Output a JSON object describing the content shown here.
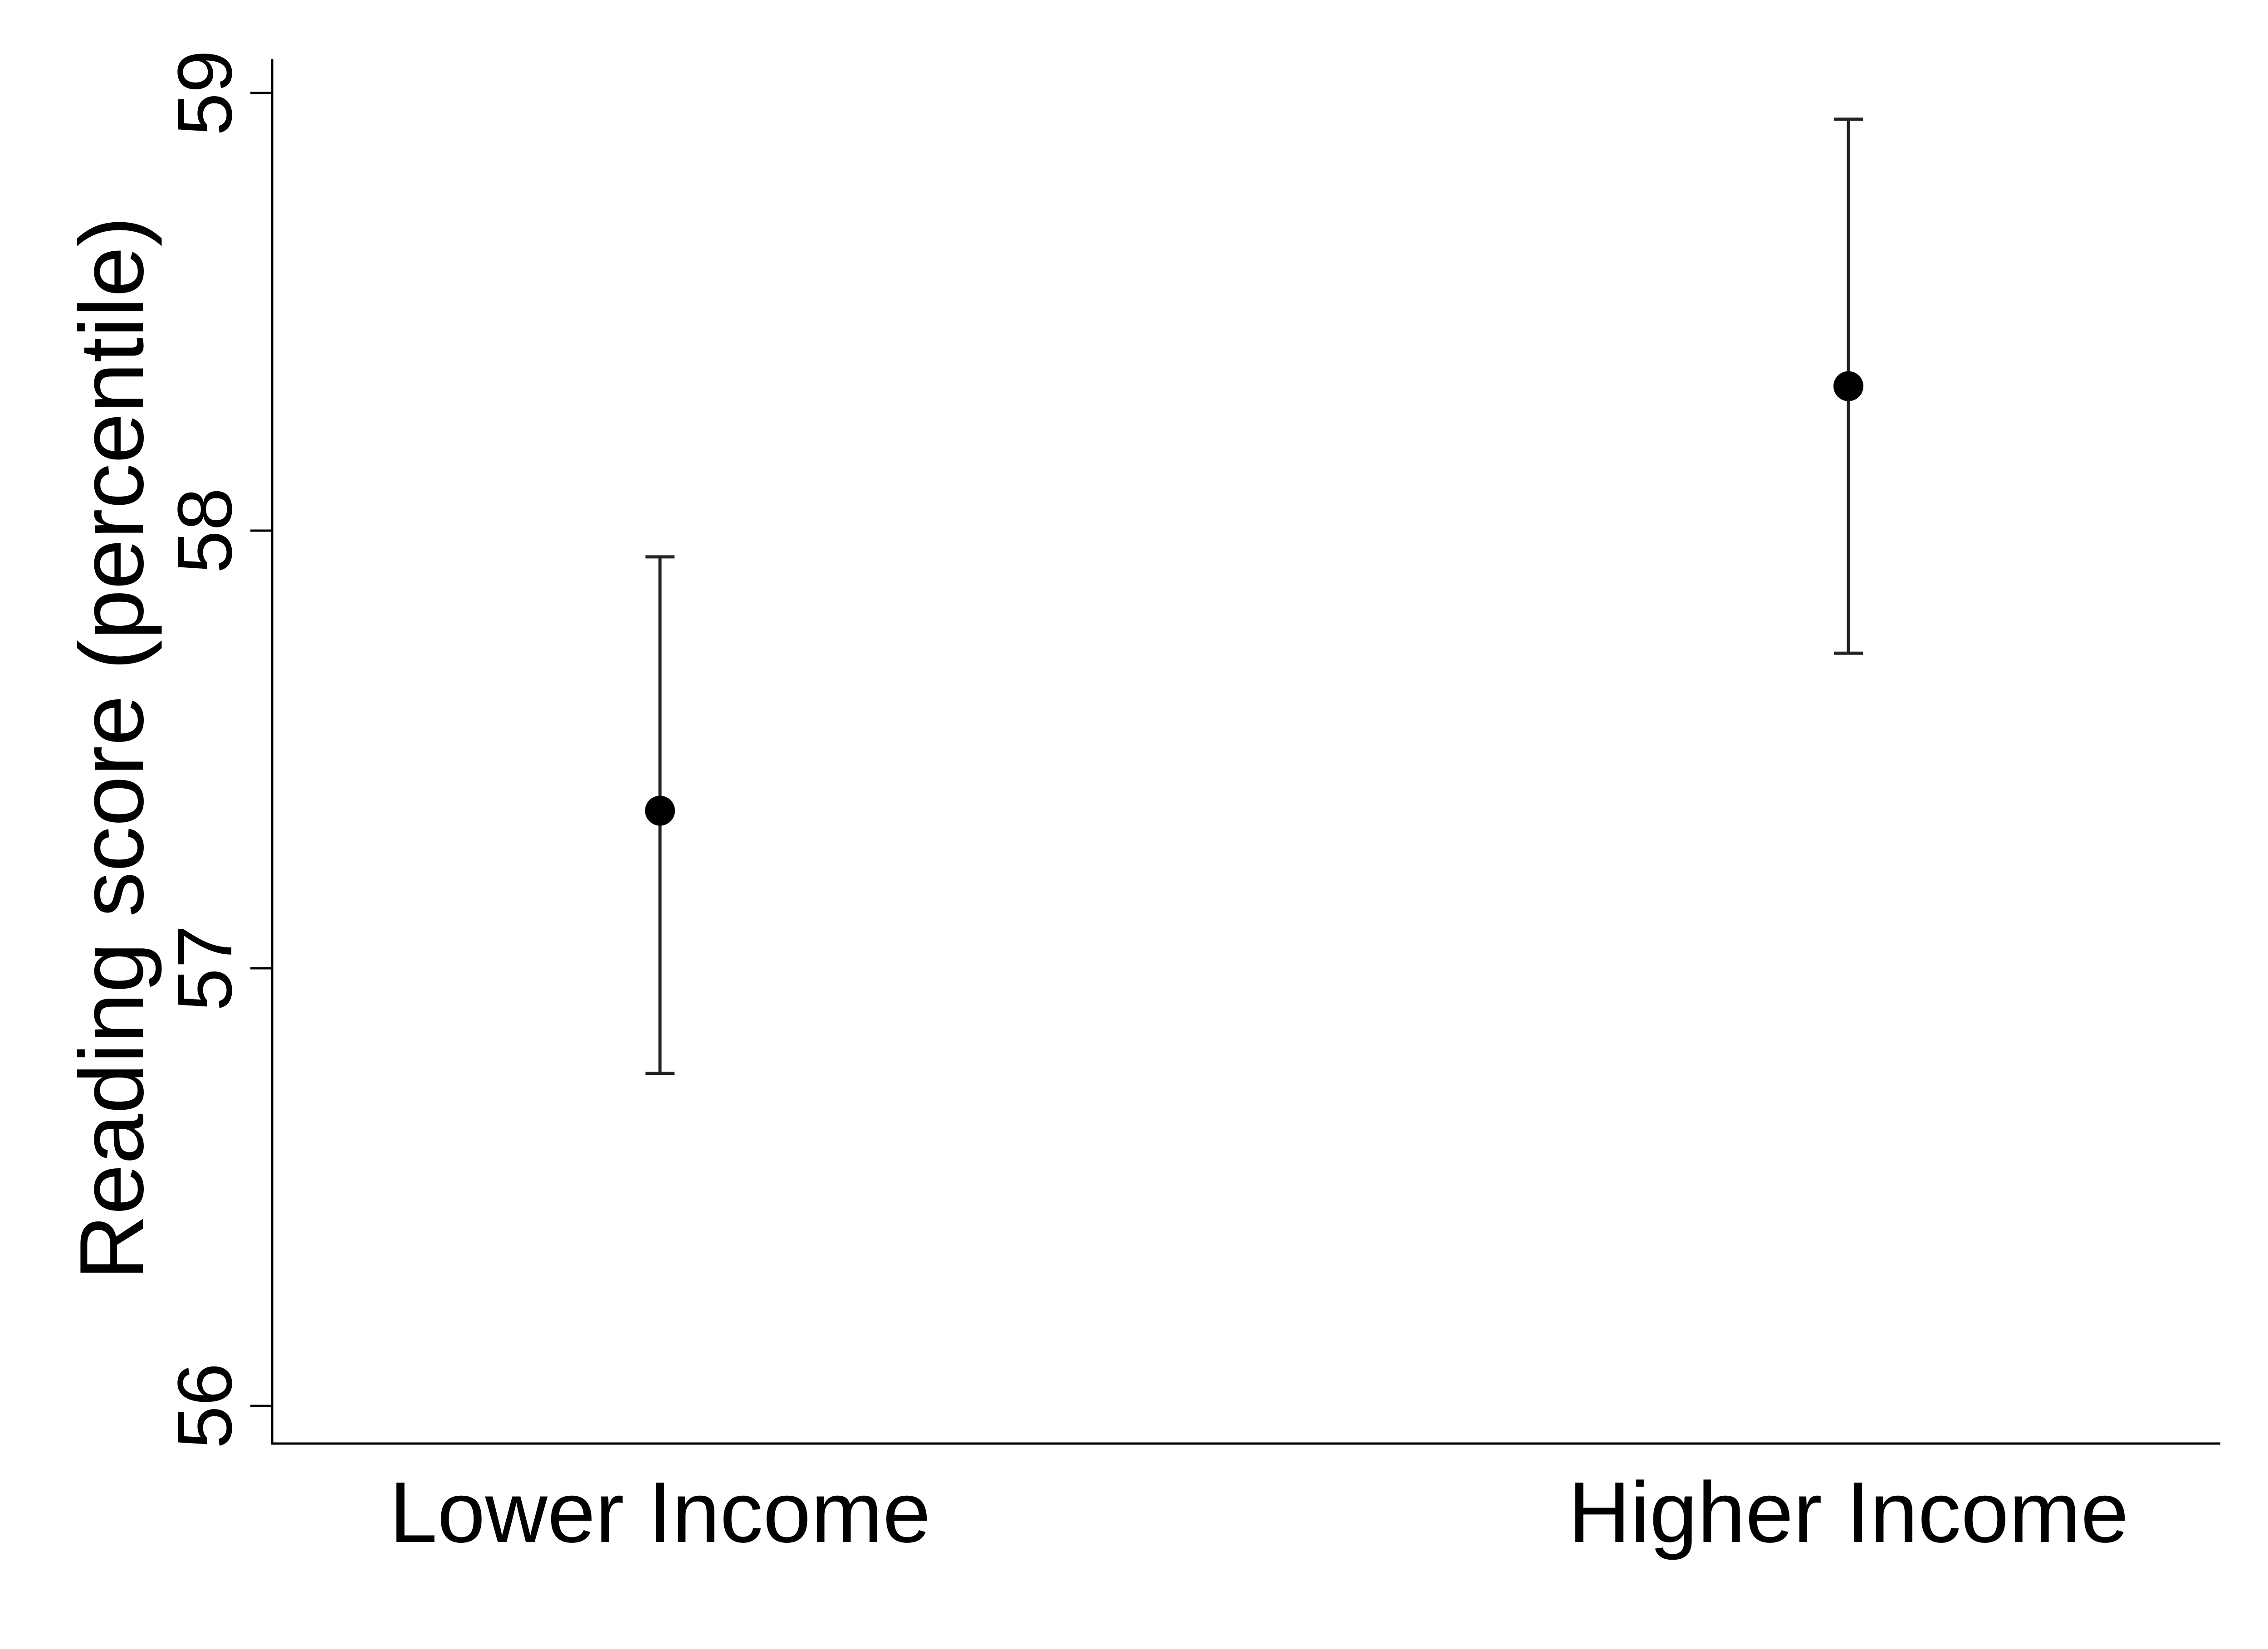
{
  "chart_data": {
    "type": "scatter",
    "categories": [
      "Lower Income",
      "Higher Income"
    ],
    "series": [
      {
        "values": [
          57.36,
          58.33
        ],
        "lower": [
          56.76,
          57.72
        ],
        "upper": [
          57.94,
          58.94
        ]
      }
    ],
    "title": "",
    "xlabel": "",
    "ylabel": "Reading score (percentile)",
    "ylim": [
      56,
      59
    ],
    "yticks": [
      "56",
      "57",
      "58",
      "59"
    ],
    "grid": false,
    "colors": {
      "marker": "#000000",
      "errorbar": "#222222",
      "axis": "#000000"
    }
  }
}
